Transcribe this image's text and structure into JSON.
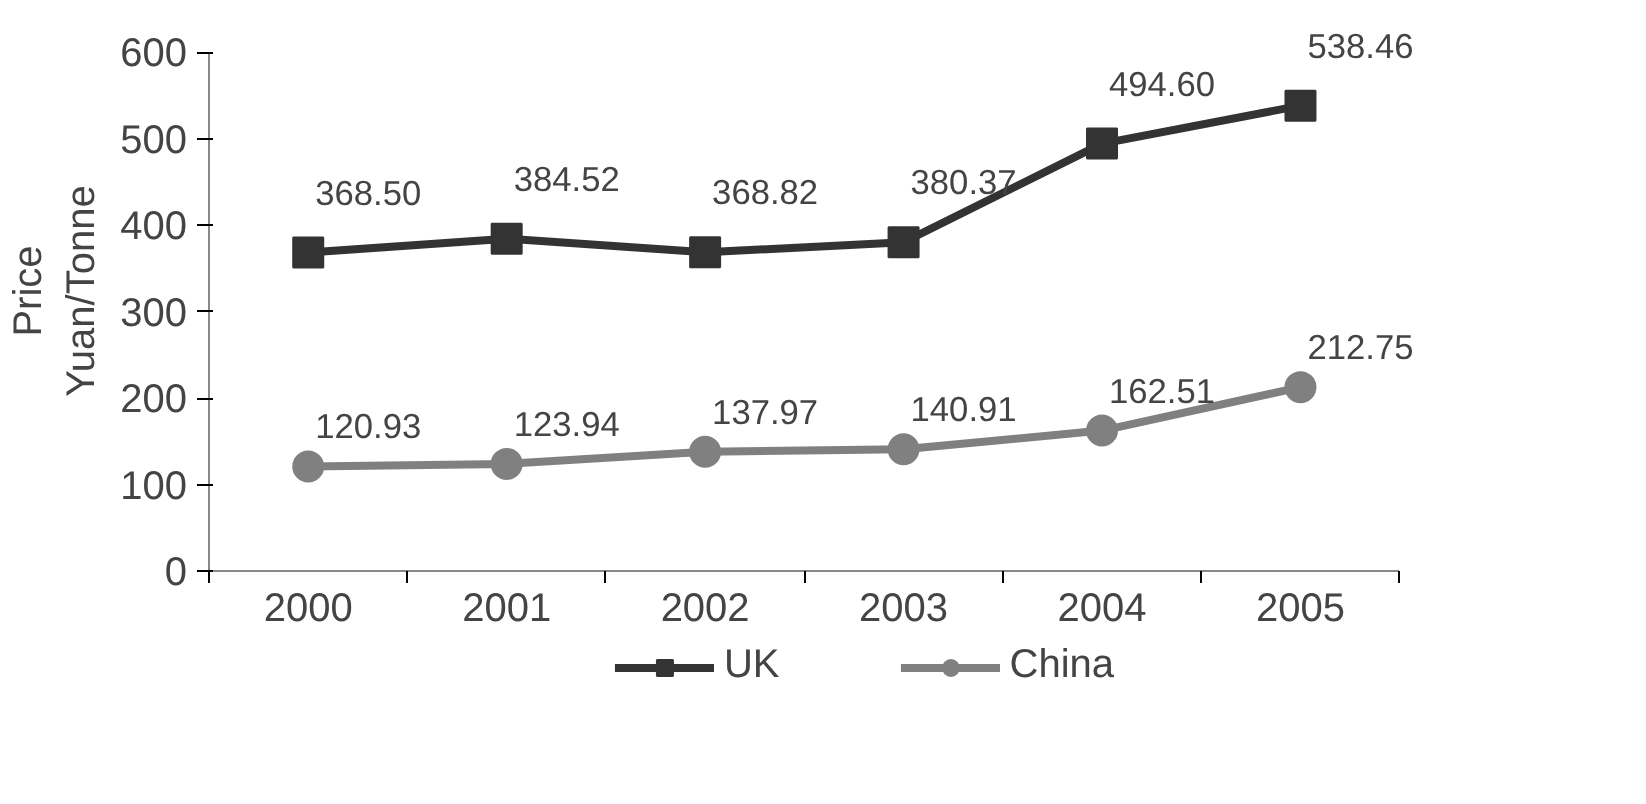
{
  "chart_data": {
    "type": "line",
    "ylabel": "Price\nYuan/Tonne",
    "categories": [
      "2000",
      "2001",
      "2002",
      "2003",
      "2004",
      "2005"
    ],
    "ylim": [
      0,
      600
    ],
    "yticks": [
      0,
      100,
      200,
      300,
      400,
      500,
      600
    ],
    "grid": false,
    "legend": "bottom",
    "data_labels": true,
    "line_style": "solid",
    "series": [
      {
        "name": "UK",
        "color": "#333333",
        "marker": "square",
        "values": [
          368.5,
          384.52,
          368.82,
          380.37,
          494.6,
          538.46
        ],
        "value_labels": [
          "368.50",
          "384.52",
          "368.82",
          "380.37",
          "494.60",
          "538.46"
        ]
      },
      {
        "name": "China",
        "color": "#808080",
        "marker": "circle",
        "values": [
          120.93,
          123.94,
          137.97,
          140.91,
          162.51,
          212.75
        ],
        "value_labels": [
          "120.93",
          "123.94",
          "137.97",
          "140.91",
          "162.51",
          "212.75"
        ]
      }
    ]
  }
}
